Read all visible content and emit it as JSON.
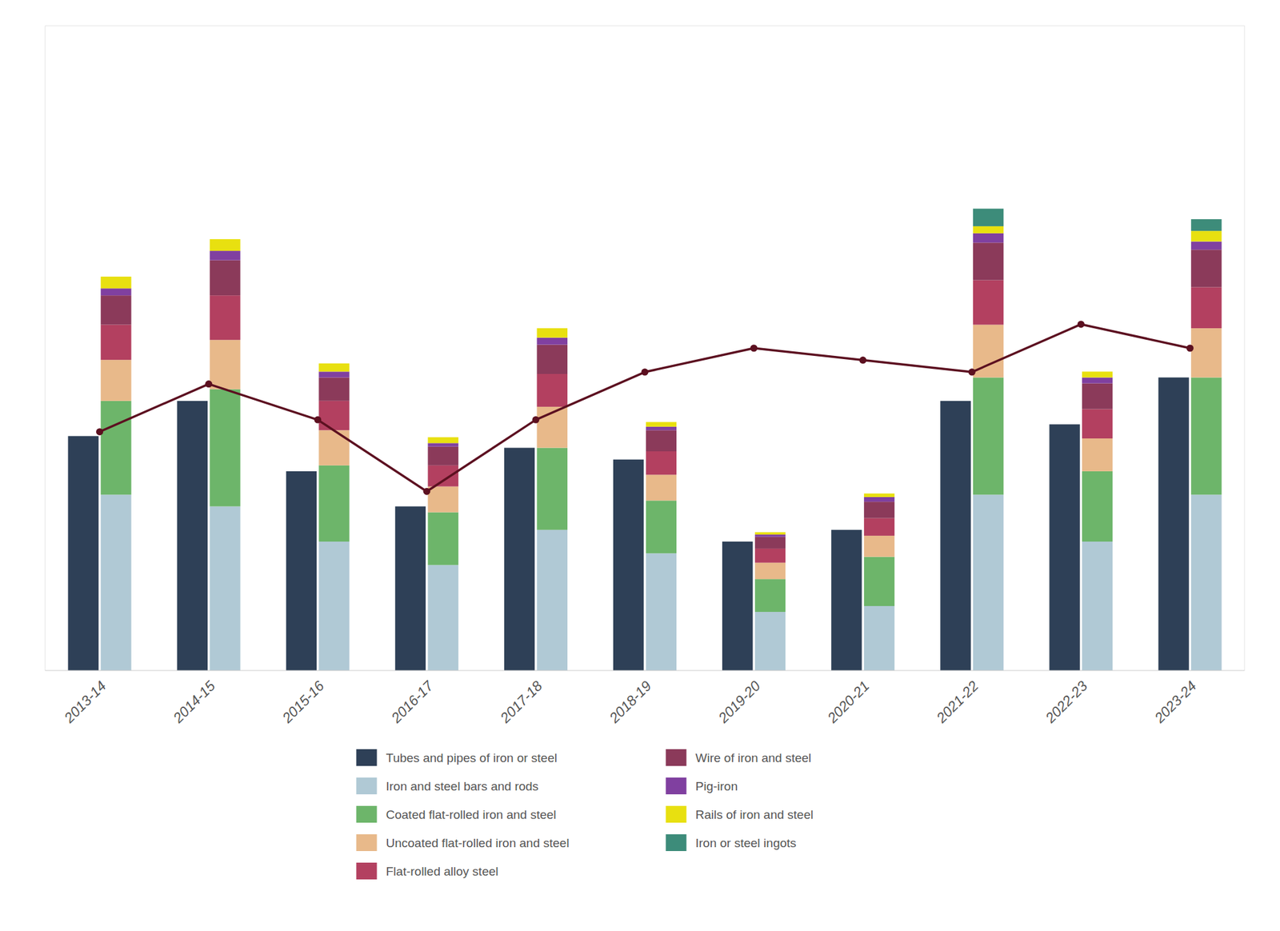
{
  "chart_data": {
    "type": "bar",
    "categories": [
      "2013-14",
      "2014-15",
      "2015-16",
      "2016-17",
      "2017-18",
      "2018-19",
      "2019-20",
      "2020-21",
      "2021-22",
      "2022-23",
      "2023-24"
    ],
    "series": [
      {
        "name": "Tubes and pipes of iron or steel",
        "color": "#2e4057",
        "stacked": false,
        "values": [
          2.0,
          2.3,
          1.7,
          1.4,
          1.9,
          1.8,
          1.1,
          1.2,
          2.3,
          2.1,
          2.5
        ]
      },
      {
        "name": "Iron and steel bars and rods",
        "color": "#b0c9d5",
        "stacked": true,
        "values": [
          1.5,
          1.4,
          1.1,
          0.9,
          1.2,
          1.0,
          0.5,
          0.55,
          1.5,
          1.1,
          1.5
        ]
      },
      {
        "name": "Coated flat-rolled iron and steel",
        "color": "#6db56a",
        "stacked": true,
        "values": [
          0.8,
          1.0,
          0.65,
          0.45,
          0.7,
          0.45,
          0.28,
          0.42,
          1.0,
          0.6,
          1.0
        ]
      },
      {
        "name": "Uncoated flat-rolled iron and steel",
        "color": "#e8b98a",
        "stacked": true,
        "values": [
          0.35,
          0.42,
          0.3,
          0.22,
          0.35,
          0.22,
          0.14,
          0.18,
          0.45,
          0.28,
          0.42
        ]
      },
      {
        "name": "Flat-rolled alloy steel",
        "color": "#b34060",
        "stacked": true,
        "values": [
          0.3,
          0.38,
          0.25,
          0.18,
          0.28,
          0.2,
          0.12,
          0.15,
          0.38,
          0.25,
          0.35
        ]
      },
      {
        "name": "Wire of iron and steel",
        "color": "#8b3a5a",
        "stacked": true,
        "values": [
          0.25,
          0.3,
          0.2,
          0.16,
          0.25,
          0.18,
          0.1,
          0.14,
          0.32,
          0.22,
          0.32
        ]
      },
      {
        "name": "Pig-iron",
        "color": "#8040a0",
        "stacked": true,
        "values": [
          0.06,
          0.08,
          0.05,
          0.03,
          0.06,
          0.03,
          0.02,
          0.04,
          0.08,
          0.05,
          0.07
        ]
      },
      {
        "name": "Rails of iron and steel",
        "color": "#e8e010",
        "stacked": true,
        "values": [
          0.1,
          0.1,
          0.07,
          0.05,
          0.08,
          0.04,
          0.02,
          0.03,
          0.06,
          0.05,
          0.09
        ]
      },
      {
        "name": "Iron or steel ingots",
        "color": "#3d8c7a",
        "stacked": true,
        "values": [
          0.0,
          0.0,
          0.0,
          0.0,
          0.0,
          0.0,
          0.0,
          0.0,
          0.15,
          0.0,
          0.1
        ]
      },
      {
        "type": "line",
        "axis": "y2",
        "color": "#5c1020",
        "marker": "circle",
        "values": [
          1.8,
          2.0,
          1.85,
          1.55,
          1.85,
          2.05,
          2.15,
          2.1,
          2.05,
          2.25,
          2.15
        ]
      }
    ],
    "ylim": [
      0,
      5.5
    ],
    "y2lim": [
      0.8,
      3.5
    ],
    "grid": false,
    "legend": "bottom",
    "tick_labels": "x"
  }
}
